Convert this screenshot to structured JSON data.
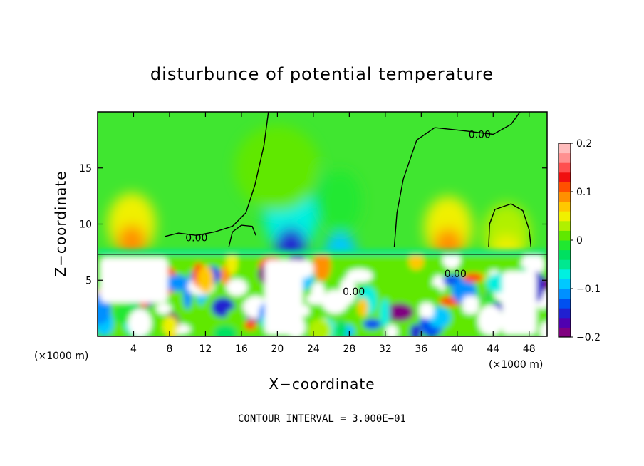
{
  "chart_data": {
    "type": "heatmap",
    "title": "disturbunce of potential temperature",
    "xlabel": "X−coordinate",
    "ylabel": "Z−coordinate",
    "x_unit_left": "(×1000 m)",
    "x_unit_right": "(×1000 m)",
    "footer": "CONTOUR INTERVAL = 3.000E−01",
    "xlim": [
      0,
      50
    ],
    "ylim": [
      0,
      20
    ],
    "x_ticks": [
      4,
      8,
      12,
      16,
      20,
      24,
      28,
      32,
      36,
      40,
      44,
      48
    ],
    "y_ticks": [
      5,
      10,
      15
    ],
    "contour_labels": [
      {
        "text": "0.00",
        "x": 42.5,
        "y": 18.0
      },
      {
        "text": "0.00",
        "x": 11.0,
        "y": 8.8
      },
      {
        "text": "0.00",
        "x": 39.8,
        "y": 5.6
      },
      {
        "text": "0.00",
        "x": 28.5,
        "y": 4.0
      }
    ],
    "colorbar": {
      "min": -0.2,
      "max": 0.2,
      "ticks": [
        0.2,
        0.1,
        0,
        -0.1,
        -0.2
      ],
      "tick_labels": [
        "0.2",
        "0.1",
        "0",
        "−0.1",
        "−0.2"
      ],
      "colors": [
        "#800080",
        "#5000b0",
        "#2020d0",
        "#0050f0",
        "#0090ff",
        "#00c8ff",
        "#00f0e0",
        "#00e890",
        "#00e060",
        "#20e830",
        "#60e800",
        "#b0f000",
        "#f0f000",
        "#ffc800",
        "#ff9000",
        "#ff5000",
        "#f01010",
        "#ff5050",
        "#ff9090",
        "#ffbcbc"
      ]
    },
    "features": {
      "upper_background_value": 0.02,
      "cold_anomalies_aloft": [
        {
          "x": 21.5,
          "z": 8.0,
          "value": -0.15
        },
        {
          "x": 27.0,
          "z": 7.6,
          "value": -0.09
        }
      ],
      "warm_anomalies_aloft": [
        {
          "x": 3.8,
          "z": 8.5,
          "value": 0.08
        },
        {
          "x": 39.0,
          "z": 8.2,
          "value": 0.09
        },
        {
          "x": 45.5,
          "z": 7.6,
          "value": 0.05
        }
      ],
      "saturated_regions": [
        {
          "x_range": [
            0.3,
            7.8
          ],
          "z_range": [
            3.0,
            7.0
          ],
          "value": "> 0.2"
        },
        {
          "x_range": [
            18.6,
            22.8
          ],
          "z_range": [
            0.1,
            6.8
          ],
          "value": "> 0.2"
        },
        {
          "x_range": [
            45.0,
            48.8
          ],
          "z_range": [
            0.1,
            5.8
          ],
          "value": "> 0.2"
        },
        {
          "x_range": [
            22.5,
            23.6
          ],
          "z_range": [
            1.8,
            2.8
          ],
          "value": "< −0.2"
        },
        {
          "x_range": [
            35.8,
            37.4
          ],
          "z_range": [
            1.6,
            3.0
          ],
          "value": "< −0.2"
        },
        {
          "x_range": [
            40.6,
            42.4
          ],
          "z_range": [
            2.0,
            3.6
          ],
          "value": "< −0.2"
        }
      ],
      "boundary_layer_top_z": 7.2
    }
  }
}
